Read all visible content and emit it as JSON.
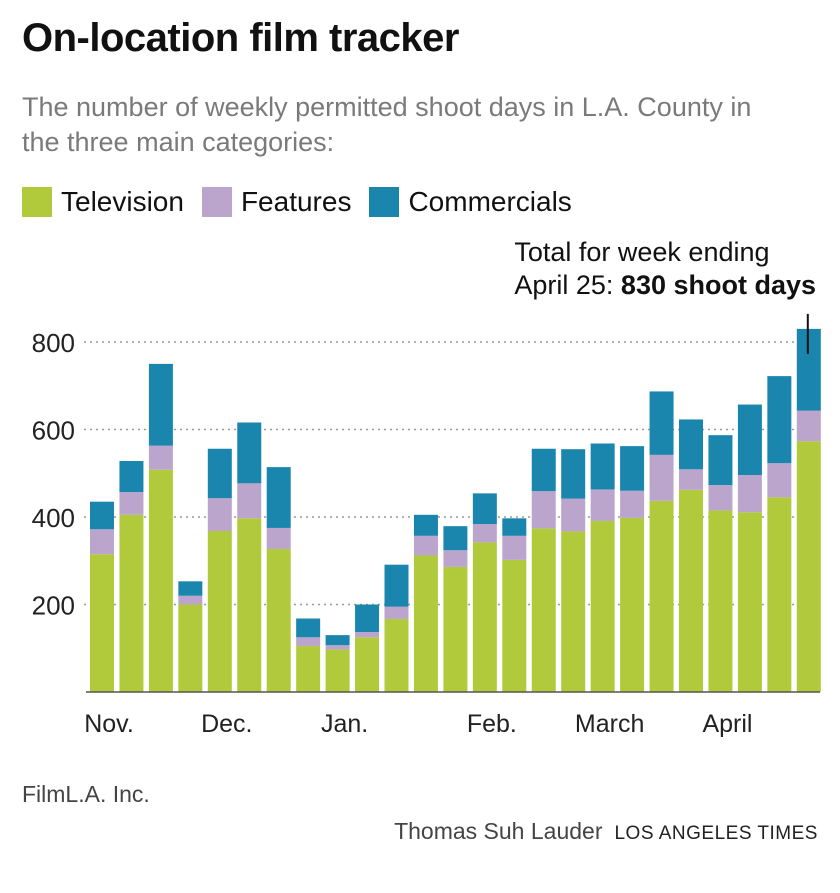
{
  "title": "On-location film tracker",
  "subtitle": "The number of weekly permitted shoot days in L.A. County in the three main categories:",
  "annotation": {
    "line1": "Total for week ending",
    "line2_prefix": "April 25: ",
    "line2_bold": "830 shoot days"
  },
  "source": "FilmL.A. Inc.",
  "credit": {
    "author": "Thomas Suh Lauder",
    "publication": "LOS ANGELES TIMES"
  },
  "colors": {
    "Television": "#b0ca3c",
    "Features": "#bba5cc",
    "Commercials": "#1a85ad"
  },
  "chart_data": {
    "type": "bar",
    "stacked": true,
    "title": "On-location film tracker",
    "ylim": [
      0,
      830
    ],
    "yticks": [
      200,
      400,
      600,
      800
    ],
    "grid": "horizontal dotted",
    "legend": "top-left",
    "month_labels": [
      {
        "label": "Nov.",
        "index": 0
      },
      {
        "label": "Dec.",
        "index": 4
      },
      {
        "label": "Jan.",
        "index": 8
      },
      {
        "label": "Feb.",
        "index": 13
      },
      {
        "label": "March",
        "index": 17
      },
      {
        "label": "April",
        "index": 21
      }
    ],
    "series": [
      {
        "name": "Television",
        "values": [
          315,
          405,
          508,
          200,
          368,
          397,
          327,
          105,
          97,
          125,
          167,
          312,
          286,
          342,
          302,
          374,
          367,
          391,
          398,
          437,
          462,
          415,
          411,
          445,
          573
        ]
      },
      {
        "name": "Features",
        "values": [
          57,
          52,
          55,
          20,
          75,
          80,
          48,
          20,
          10,
          12,
          28,
          45,
          38,
          42,
          55,
          85,
          75,
          72,
          62,
          105,
          47,
          58,
          85,
          78,
          70
        ]
      },
      {
        "name": "Commercials",
        "values": [
          63,
          71,
          187,
          33,
          113,
          139,
          139,
          43,
          23,
          63,
          96,
          48,
          55,
          70,
          40,
          97,
          113,
          105,
          102,
          145,
          114,
          114,
          161,
          199,
          187
        ]
      }
    ],
    "totals": [
      435,
      528,
      750,
      253,
      556,
      616,
      514,
      168,
      130,
      200,
      291,
      405,
      379,
      454,
      397,
      556,
      555,
      568,
      562,
      687,
      623,
      587,
      657,
      722,
      830
    ],
    "highlight": {
      "index": 24,
      "total": 830
    }
  }
}
